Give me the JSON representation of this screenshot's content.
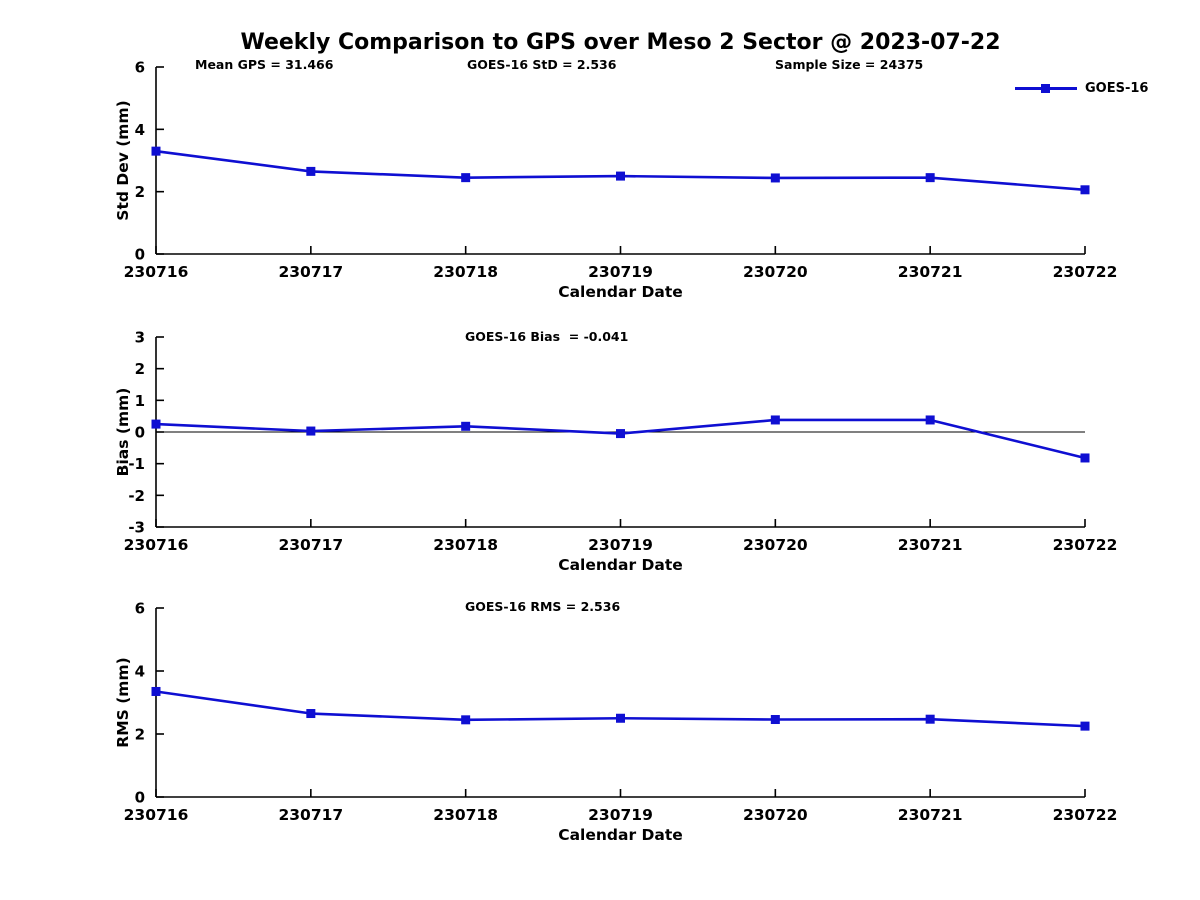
{
  "title": "Weekly Comparison to GPS over Meso 2 Sector @ 2023-07-22",
  "colors": {
    "series_blue": "#0f0fd2",
    "axis_black": "#000000"
  },
  "legend": {
    "label": "GOES-16"
  },
  "chart_data": [
    {
      "type": "line",
      "annotations": [
        "Mean GPS = 31.466",
        "GOES-16 StD = 2.536",
        "Sample Size = 24375"
      ],
      "categories": [
        "230716",
        "230717",
        "230718",
        "230719",
        "230720",
        "230721",
        "230722"
      ],
      "series": [
        {
          "name": "GOES-16",
          "values": [
            3.3,
            2.65,
            2.45,
            2.5,
            2.44,
            2.45,
            2.06
          ]
        }
      ],
      "xlabel": "Calendar Date",
      "ylabel": "Std Dev (mm)",
      "ylim": [
        0,
        6
      ],
      "yticks": [
        0,
        2,
        4,
        6
      ],
      "zero_line": false,
      "grid": false,
      "legend_position": "upper-right-outside"
    },
    {
      "type": "line",
      "annotations": [
        "GOES-16 Bias  = -0.041"
      ],
      "categories": [
        "230716",
        "230717",
        "230718",
        "230719",
        "230720",
        "230721",
        "230722"
      ],
      "series": [
        {
          "name": "GOES-16",
          "values": [
            0.25,
            0.03,
            0.18,
            -0.05,
            0.38,
            0.38,
            -0.82
          ]
        }
      ],
      "xlabel": "Calendar Date",
      "ylabel": "Bias (mm)",
      "ylim": [
        -3,
        3
      ],
      "yticks": [
        -3,
        -2,
        -1,
        0,
        1,
        2,
        3
      ],
      "zero_line": true,
      "grid": false
    },
    {
      "type": "line",
      "annotations": [
        "GOES-16 RMS = 2.536"
      ],
      "categories": [
        "230716",
        "230717",
        "230718",
        "230719",
        "230720",
        "230721",
        "230722"
      ],
      "series": [
        {
          "name": "GOES-16",
          "values": [
            3.35,
            2.65,
            2.45,
            2.5,
            2.46,
            2.47,
            2.25
          ]
        }
      ],
      "xlabel": "Calendar Date",
      "ylabel": "RMS (mm)",
      "ylim": [
        0,
        6
      ],
      "yticks": [
        0,
        2,
        4,
        6
      ],
      "zero_line": false,
      "grid": false
    }
  ]
}
